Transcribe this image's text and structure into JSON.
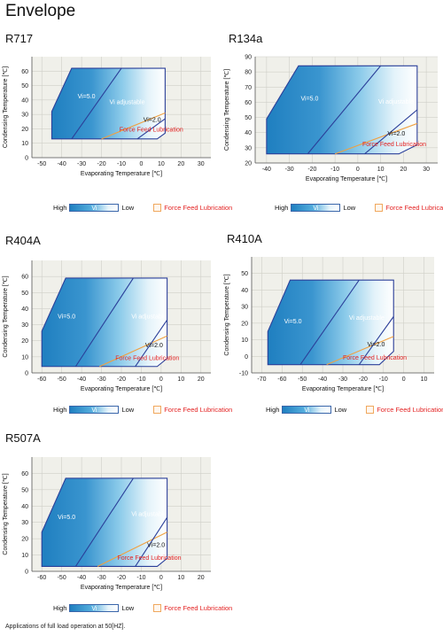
{
  "page_title": "Envelope",
  "footnote": "Applications of full load operation at 50[HZ].",
  "legend": {
    "high": "High",
    "vi": "Vi",
    "low": "Low",
    "ffl": "Force Feed Lubrication"
  },
  "colors": {
    "envelope_outline": "#2b3f99",
    "envelope_fill_dark": "#1f7fc0",
    "envelope_fill_light": "#ffffff",
    "plot_background": "#f0f0ea",
    "gridline": "#cfcfc8",
    "ffl_line": "#f0a040",
    "ffl_text": "#e32222"
  },
  "chart_data": [
    {
      "type": "area",
      "refrigerant": "R717",
      "xlabel": "Evaporating Temperature [℃]",
      "ylabel": "Condensing Temperature [℃]",
      "xlim": [
        -55,
        35
      ],
      "ylim": [
        0,
        70
      ],
      "xticks": [
        -50,
        -40,
        -30,
        -20,
        -10,
        0,
        10,
        20,
        30
      ],
      "yticks": [
        0,
        10,
        20,
        30,
        40,
        50,
        60
      ],
      "grid": true,
      "envelope": [
        [
          -45,
          13
        ],
        [
          -45,
          32
        ],
        [
          -35,
          62
        ],
        [
          12,
          62
        ],
        [
          12,
          17
        ],
        [
          8,
          13
        ]
      ],
      "vi5_line": [
        [
          -35,
          13
        ],
        [
          -10,
          62
        ]
      ],
      "vi2_line": [
        [
          -2,
          13
        ],
        [
          12,
          27
        ]
      ],
      "ffl_line": [
        [
          -20,
          13
        ],
        [
          12,
          31
        ]
      ],
      "labels": {
        "vi5": "Vi=5.0",
        "vi_adjustable": "Vi adjustable",
        "vi2": "Vi=2.0",
        "ffl": "Force Feed Lubrication"
      },
      "label_positions": {
        "vi5": [
          -32,
          41
        ],
        "vi_adjustable": [
          -16,
          37
        ],
        "vi2": [
          1,
          25
        ],
        "ffl": [
          -11,
          18
        ]
      }
    },
    {
      "type": "area",
      "refrigerant": "R134a",
      "xlabel": "Evaporating Temperature [℃]",
      "ylabel": "Condensing Temperature [℃]",
      "xlim": [
        -45,
        35
      ],
      "ylim": [
        20,
        90
      ],
      "xticks": [
        -40,
        -30,
        -20,
        -10,
        0,
        10,
        20,
        30
      ],
      "yticks": [
        20,
        30,
        40,
        50,
        60,
        70,
        80,
        90
      ],
      "grid": true,
      "envelope": [
        [
          -40,
          26
        ],
        [
          -40,
          49
        ],
        [
          -26,
          84
        ],
        [
          26,
          84
        ],
        [
          26,
          32
        ],
        [
          18,
          26
        ]
      ],
      "vi5_line": [
        [
          -22,
          26
        ],
        [
          10,
          84
        ]
      ],
      "vi2_line": [
        [
          3,
          26
        ],
        [
          26,
          55
        ]
      ],
      "ffl_line": [
        [
          -10,
          26
        ],
        [
          26,
          46
        ]
      ],
      "labels": {
        "vi5": "Vi=5.0",
        "vi_adjustable": "Vi adjustable",
        "vi2": "Vi=2.0",
        "ffl": "Force Feed Lubrication"
      },
      "label_positions": {
        "vi5": [
          -25,
          61
        ],
        "vi_adjustable": [
          9,
          59
        ],
        "vi2": [
          13,
          38
        ],
        "ffl": [
          2,
          31
        ]
      }
    },
    {
      "type": "area",
      "refrigerant": "R404A",
      "xlabel": "Evaporating Temperature [℃]",
      "ylabel": "Condensing Temperature [℃]",
      "xlim": [
        -65,
        25
      ],
      "ylim": [
        0,
        70
      ],
      "xticks": [
        -60,
        -50,
        -40,
        -30,
        -20,
        -10,
        0,
        10,
        20
      ],
      "yticks": [
        0,
        10,
        20,
        30,
        40,
        50,
        60
      ],
      "grid": true,
      "envelope": [
        [
          -60,
          4
        ],
        [
          -60,
          26
        ],
        [
          -48,
          59
        ],
        [
          3,
          59
        ],
        [
          3,
          9
        ],
        [
          -2,
          4
        ]
      ],
      "vi5_line": [
        [
          -43,
          4
        ],
        [
          -14,
          59
        ]
      ],
      "vi2_line": [
        [
          -13,
          4
        ],
        [
          3,
          33
        ]
      ],
      "ffl_line": [
        [
          -31,
          4
        ],
        [
          3,
          23
        ]
      ],
      "labels": {
        "vi5": "Vi=5.0",
        "vi_adjustable": "Vi adjustable",
        "vi2": "Vi=2.0",
        "ffl": "Force Feed Lubrication"
      },
      "label_positions": {
        "vi5": [
          -52,
          34
        ],
        "vi_adjustable": [
          -15,
          34
        ],
        "vi2": [
          -8,
          16
        ],
        "ffl": [
          -23,
          8
        ]
      }
    },
    {
      "type": "area",
      "refrigerant": "R410A",
      "xlabel": "Evaporating Temperature [℃]",
      "ylabel": "Condensing Temperature [℃]",
      "xlim": [
        -75,
        15
      ],
      "ylim": [
        -10,
        60
      ],
      "xticks": [
        -70,
        -60,
        -50,
        -40,
        -30,
        -20,
        -10,
        0,
        10
      ],
      "yticks": [
        -10,
        0,
        10,
        20,
        30,
        40,
        50
      ],
      "grid": true,
      "envelope": [
        [
          -67,
          -5
        ],
        [
          -67,
          15
        ],
        [
          -56,
          46
        ],
        [
          -5,
          46
        ],
        [
          -5,
          3
        ],
        [
          -12,
          -5
        ]
      ],
      "vi5_line": [
        [
          -51,
          -5
        ],
        [
          -22,
          46
        ]
      ],
      "vi2_line": [
        [
          -22,
          -5
        ],
        [
          -5,
          24
        ]
      ],
      "ffl_line": [
        [
          -38,
          -5
        ],
        [
          -5,
          12
        ]
      ],
      "labels": {
        "vi5": "Vi=5.0",
        "vi_adjustable": "Vi adjustable",
        "vi2": "Vi=2.0",
        "ffl": "Force Feed Lubrication"
      },
      "label_positions": {
        "vi5": [
          -59,
          20
        ],
        "vi_adjustable": [
          -27,
          22
        ],
        "vi2": [
          -18,
          6
        ],
        "ffl": [
          -30,
          -2
        ]
      }
    },
    {
      "type": "area",
      "refrigerant": "R507A",
      "xlabel": "Evaporating Temperature [℃]",
      "ylabel": "Condensing Temperature [℃]",
      "xlim": [
        -65,
        25
      ],
      "ylim": [
        0,
        70
      ],
      "xticks": [
        -60,
        -50,
        -40,
        -30,
        -20,
        -10,
        0,
        10,
        20
      ],
      "yticks": [
        0,
        10,
        20,
        30,
        40,
        50,
        60
      ],
      "grid": true,
      "envelope": [
        [
          -60,
          3
        ],
        [
          -60,
          24
        ],
        [
          -48,
          57
        ],
        [
          3,
          57
        ],
        [
          3,
          8
        ],
        [
          -2,
          3
        ]
      ],
      "vi5_line": [
        [
          -43,
          3
        ],
        [
          -14,
          57
        ]
      ],
      "vi2_line": [
        [
          -13,
          3
        ],
        [
          3,
          33
        ]
      ],
      "ffl_line": [
        [
          -32,
          3
        ],
        [
          3,
          24
        ]
      ],
      "labels": {
        "vi5": "Vi=5.0",
        "vi_adjustable": "Vi adjustable",
        "vi2": "Vi=2.0",
        "ffl": "Force Feed Lubrication"
      },
      "label_positions": {
        "vi5": [
          -52,
          32
        ],
        "vi_adjustable": [
          -15,
          34
        ],
        "vi2": [
          -7,
          15
        ],
        "ffl": [
          -22,
          7
        ]
      }
    }
  ]
}
